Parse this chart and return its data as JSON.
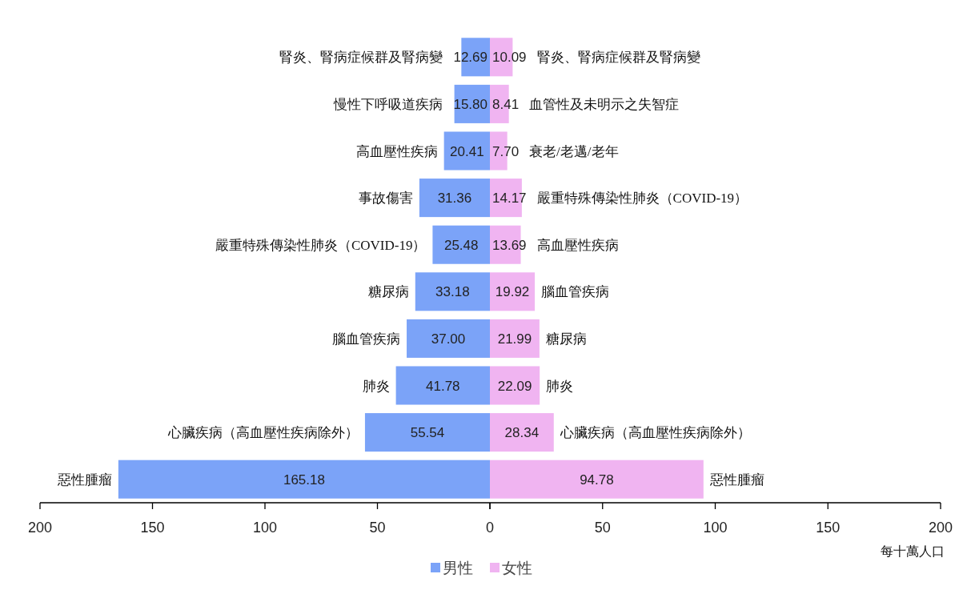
{
  "chart_data": [
    {
      "type": "bar",
      "orientation": "horizontal",
      "categories": [
        "腎炎、腎病症候群及腎病變",
        "慢性下呼吸道疾病",
        "高血壓性疾病",
        "事故傷害",
        "嚴重特殊傳染性肺炎（COVID-19）",
        "糖尿病",
        "腦血管疾病",
        "肺炎",
        "心臟疾病（高血壓性疾病除外）",
        "惡性腫瘤"
      ],
      "series": [
        {
          "name": "男性",
          "color": "#7ba3f8",
          "values": [
            12.69,
            15.8,
            20.41,
            31.36,
            25.48,
            33.18,
            37.0,
            41.78,
            55.54,
            165.18
          ],
          "value_labels": [
            "12.69",
            "15.80",
            "20.41",
            "31.36",
            "25.48",
            "33.18",
            "37.00",
            "41.78",
            "55.54",
            "165.18"
          ]
        }
      ],
      "xlim": [
        200,
        0
      ],
      "xticks": [
        200,
        150,
        100,
        50,
        {
          "value": 0,
          "label": null
        }
      ],
      "legend": "bottom"
    },
    {
      "type": "bar",
      "orientation": "horizontal",
      "categories": [
        "腎炎、腎病症候群及腎病變",
        "血管性及未明示之失智症",
        "衰老/老邁/老年",
        "嚴重特殊傳染性肺炎（COVID-19）",
        "高血壓性疾病",
        "腦血管疾病",
        "糖尿病",
        "肺炎",
        "心臟疾病（高血壓性疾病除外）",
        "惡性腫瘤"
      ],
      "series": [
        {
          "name": "女性",
          "color": "#f0b4f1",
          "values": [
            10.09,
            8.41,
            7.7,
            14.17,
            13.69,
            19.92,
            21.99,
            22.09,
            28.34,
            94.78
          ],
          "value_labels": [
            "10.09",
            "8.41",
            "7.70",
            "14.17",
            "13.69",
            "19.92",
            "21.99",
            "22.09",
            "28.34",
            "94.78"
          ]
        }
      ],
      "xlim": [
        0,
        200
      ],
      "xticks": [
        0,
        50,
        100,
        150,
        200
      ],
      "xlabel": "每十萬人口",
      "legend": "bottom"
    }
  ]
}
